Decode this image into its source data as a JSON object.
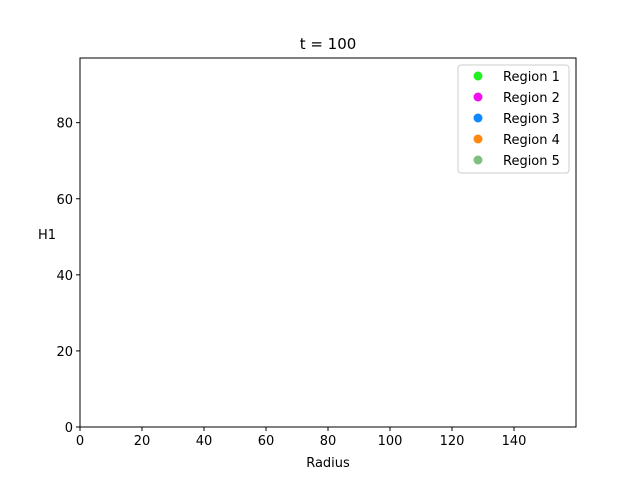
{
  "chart_data": {
    "type": "scatter",
    "title": "t = 100",
    "xlabel": "Radius",
    "ylabel": "H1",
    "xlim": [
      0,
      160
    ],
    "ylim": [
      0,
      97
    ],
    "xticks": [
      0,
      20,
      40,
      60,
      80,
      100,
      120,
      140
    ],
    "yticks": [
      0,
      20,
      40,
      60,
      80
    ],
    "grid": false,
    "legend_position": "top-right",
    "series": [
      {
        "name": "Region 1",
        "color": "#22ee22",
        "points": []
      },
      {
        "name": "Region 2",
        "color": "#ee11ee",
        "points": []
      },
      {
        "name": "Region 3",
        "color": "#1188ff",
        "points": []
      },
      {
        "name": "Region 4",
        "color": "#ff8811",
        "points": []
      },
      {
        "name": "Region 5",
        "color": "#7fbf7f",
        "points": []
      }
    ]
  }
}
